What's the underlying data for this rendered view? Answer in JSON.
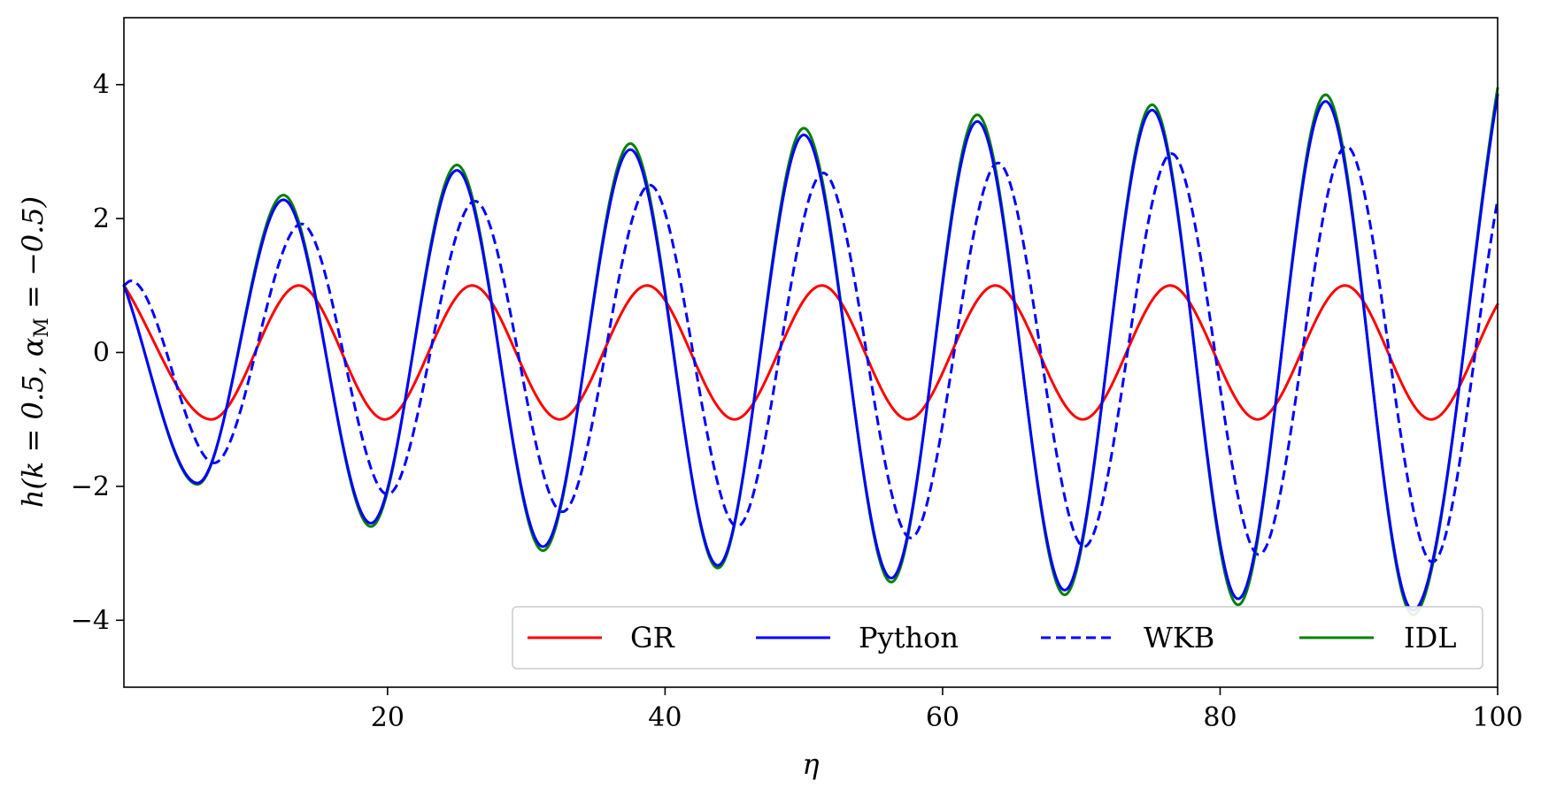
{
  "chart_data": {
    "type": "line",
    "xlabel": "η",
    "ylabel": "h(k = 0.5, α_M = −0.5)",
    "ylabel_parts": {
      "a": "h(k = 0.5, α",
      "sub": "M",
      "b": " = −0.5)"
    },
    "xlim": [
      1,
      100
    ],
    "ylim": [
      -5,
      5
    ],
    "xticks": [
      20,
      40,
      60,
      80,
      100
    ],
    "xtick_labels": [
      "20",
      "40",
      "60",
      "80",
      "100"
    ],
    "yticks": [
      -4,
      -2,
      0,
      2,
      4
    ],
    "ytick_labels": [
      "−4",
      "−2",
      "0",
      "2",
      "4"
    ],
    "grid": false,
    "legend_position": "lower-right",
    "legend_columns": 4,
    "series": [
      {
        "name": "GR",
        "color": "#ff0000",
        "style": "solid",
        "x": [
          1,
          7.3,
          13.6,
          19.8,
          26.1,
          32.4,
          38.7,
          45.0,
          51.3,
          57.5,
          63.8,
          70.1,
          76.4,
          82.7,
          89.0,
          95.2,
          100
        ],
        "y": [
          1.0,
          -1.0,
          1.0,
          -1.0,
          1.0,
          -1.0,
          1.0,
          -1.0,
          1.0,
          -1.0,
          1.0,
          -1.0,
          1.0,
          -1.0,
          1.0,
          -1.0,
          0.72
        ]
      },
      {
        "name": "Python",
        "color": "#0000ff",
        "style": "solid",
        "x": [
          1,
          6.3,
          12.5,
          18.8,
          25.0,
          31.2,
          37.5,
          43.8,
          50.0,
          56.3,
          62.5,
          68.8,
          75.1,
          81.3,
          87.6,
          93.9,
          100
        ],
        "y": [
          1.0,
          -1.95,
          2.28,
          -2.55,
          2.72,
          -2.9,
          3.03,
          -3.18,
          3.25,
          -3.37,
          3.45,
          -3.55,
          3.62,
          -3.68,
          3.75,
          -3.85,
          3.85
        ]
      },
      {
        "name": "WKB",
        "color": "#0000ff",
        "style": "dashed",
        "x": [
          1,
          1.5,
          7.5,
          13.8,
          20.0,
          26.3,
          32.6,
          38.9,
          45.2,
          51.4,
          57.7,
          64.0,
          70.2,
          76.5,
          82.8,
          89.1,
          95.3,
          100
        ],
        "y": [
          1.0,
          1.07,
          -1.65,
          1.92,
          -2.12,
          2.26,
          -2.38,
          2.5,
          -2.6,
          2.68,
          -2.77,
          2.83,
          -2.9,
          2.97,
          -3.02,
          3.08,
          -3.13,
          2.28
        ]
      },
      {
        "name": "IDL",
        "color": "#008000",
        "style": "solid",
        "x": [
          1,
          6.3,
          12.5,
          18.8,
          25.0,
          31.2,
          37.5,
          43.8,
          50.0,
          56.3,
          62.5,
          68.8,
          75.1,
          81.3,
          87.6,
          93.9,
          100
        ],
        "y": [
          1.0,
          -1.97,
          2.35,
          -2.6,
          2.8,
          -2.96,
          3.12,
          -3.22,
          3.35,
          -3.43,
          3.55,
          -3.62,
          3.7,
          -3.77,
          3.85,
          -3.92,
          3.95
        ]
      }
    ]
  }
}
